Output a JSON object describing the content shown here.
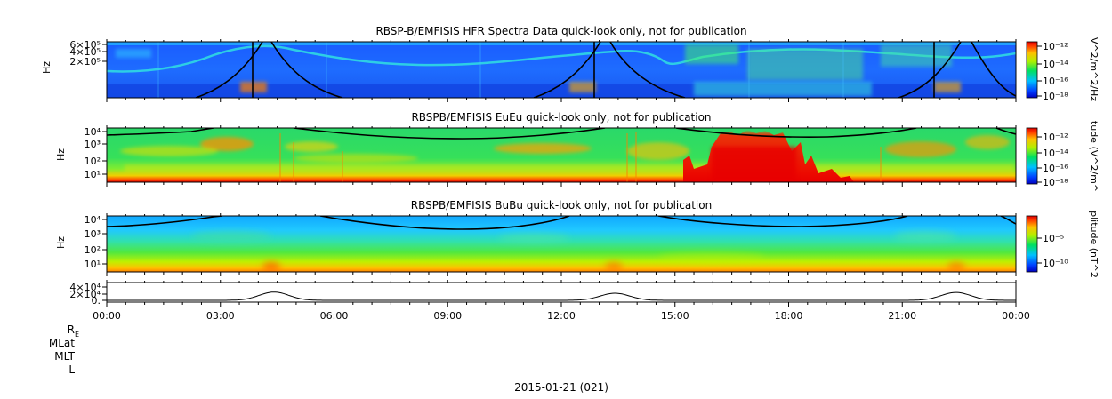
{
  "footer_date": "2015-01-21 (021)",
  "row_labels": [
    "R",
    "MLat",
    "MLT",
    "L"
  ],
  "row_label_subscript": "E",
  "time_ticks": [
    "00:00",
    "03:00",
    "06:00",
    "09:00",
    "12:00",
    "15:00",
    "18:00",
    "21:00",
    "00:00"
  ],
  "chart_data": [
    {
      "type": "heatmap",
      "title": "RBSP-B/EMFISIS  HFR Spectra Data quick-look only, not for publication",
      "ylabel": "Hz",
      "yticks": [
        "6×10⁵",
        "4×10⁵",
        "2×10⁵"
      ],
      "colorbar_label": "V^2/m^2/Hz",
      "colorbar_ticks": [
        "10⁻¹²",
        "10⁻¹⁴",
        "10⁻¹⁶",
        "10⁻¹⁸"
      ]
    },
    {
      "type": "heatmap",
      "title": "RBSPB/EMFISIS  EuEu quick-look only, not for publication",
      "ylabel": "Hz",
      "yticks": [
        "10⁴",
        "10³",
        "10²",
        "10¹"
      ],
      "colorbar_label": "tude (V^2/m^",
      "colorbar_ticks": [
        "10⁻¹²",
        "10⁻¹⁴",
        "10⁻¹⁶",
        "10⁻¹⁸"
      ]
    },
    {
      "type": "heatmap",
      "title": "RBSPB/EMFISIS  BuBu quick-look only, not for publication",
      "ylabel": "Hz",
      "yticks": [
        "10⁴",
        "10³",
        "10²",
        "10¹"
      ],
      "colorbar_label": "plitude (nT^2",
      "colorbar_ticks": [
        "10⁻⁵",
        "10⁻¹⁰"
      ]
    },
    {
      "type": "line",
      "yticks": [
        "4×10⁴",
        "2×10⁴",
        "0."
      ],
      "peaks": [
        {
          "time": "04:25",
          "value": 21000
        },
        {
          "time": "13:25",
          "value": 18000
        },
        {
          "time": "22:25",
          "value": 20000
        }
      ]
    }
  ]
}
